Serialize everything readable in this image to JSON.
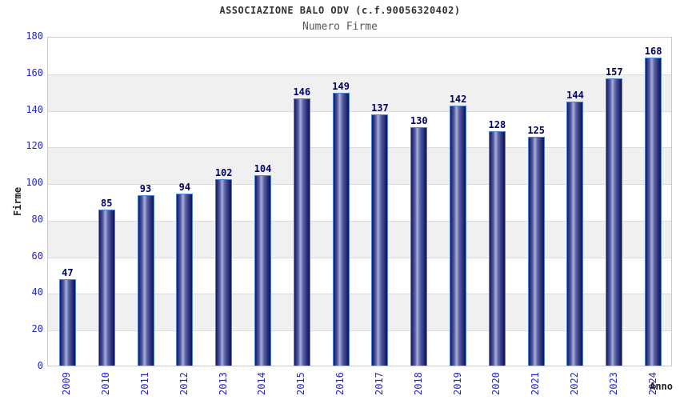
{
  "chart_data": {
    "type": "bar",
    "title": "ASSOCIAZIONE BALO ODV (c.f.90056320402)",
    "subtitle": "Numero Firme",
    "xlabel": "Anno",
    "ylabel": "Firme",
    "categories": [
      "2009",
      "2010",
      "2011",
      "2012",
      "2013",
      "2014",
      "2015",
      "2016",
      "2017",
      "2018",
      "2019",
      "2020",
      "2021",
      "2022",
      "2023",
      "2024"
    ],
    "values": [
      47,
      85,
      93,
      94,
      102,
      104,
      146,
      149,
      137,
      130,
      142,
      128,
      125,
      144,
      157,
      168
    ],
    "ylim": [
      0,
      180
    ],
    "ytick_step": 20,
    "yticks": [
      0,
      20,
      40,
      60,
      80,
      100,
      120,
      140,
      160,
      180
    ],
    "grid": true,
    "alternating_bands": true,
    "legend": "none",
    "bar_value_labels_visible": true
  },
  "colors": {
    "axis_label": "#2424cc",
    "value_label": "#000066",
    "title": "#333333",
    "subtitle": "#595959",
    "band": "#f0f0f0",
    "gridline": "#dcdcdc",
    "plot_border": "#c9c9c9",
    "bar_border": "#4d86d9",
    "bar_dark": "#131863",
    "bar_mid": "#5a61a5",
    "bar_light": "#a9b0d9",
    "axis_title": "#222222"
  }
}
